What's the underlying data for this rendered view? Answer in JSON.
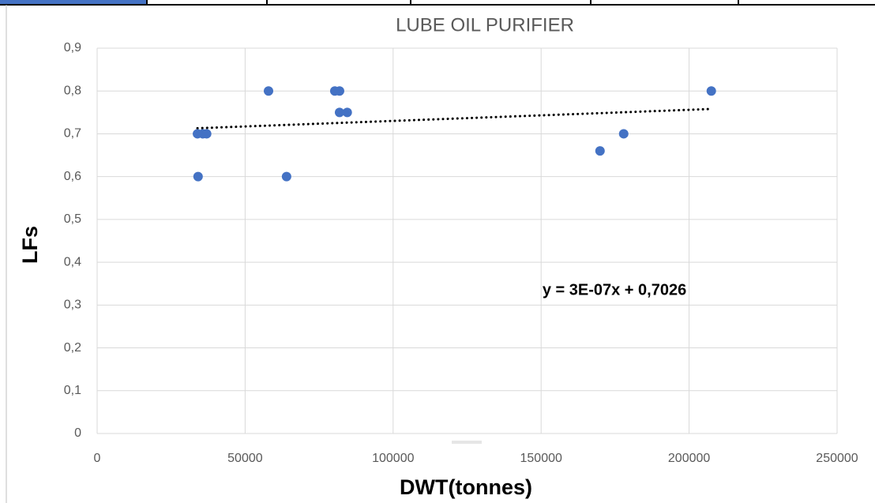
{
  "chart_data": {
    "type": "scatter",
    "title": "LUBE OIL PURIFIER",
    "xlabel": "DWT(tonnes)",
    "ylabel": "LFs",
    "x": [
      33900,
      34100,
      35700,
      37000,
      57900,
      64000,
      80300,
      81900,
      81900,
      84500,
      169900,
      177900,
      207500
    ],
    "values": [
      0.7,
      0.6,
      0.7,
      0.7,
      0.8,
      0.6,
      0.8,
      0.8,
      0.75,
      0.75,
      0.66,
      0.7,
      0.8
    ],
    "color": "#4472c4",
    "trendline": {
      "x": [
        33900,
        207500
      ],
      "values": [
        0.713,
        0.758
      ],
      "color": "#000000"
    },
    "annotation": "y = 3E-07x + 0,7026",
    "xlim": [
      0,
      250000
    ],
    "xticks": [
      0,
      50000,
      100000,
      150000,
      200000,
      250000
    ],
    "ylim": [
      0,
      0.9
    ],
    "yticks": [
      0,
      {
        "value": 0.1,
        "label": "0,1"
      },
      {
        "value": 0.2,
        "label": "0,2"
      },
      {
        "value": 0.3,
        "label": "0,3"
      },
      {
        "value": 0.4,
        "label": "0,4"
      },
      {
        "value": 0.5,
        "label": "0,5"
      },
      {
        "value": 0.6,
        "label": "0,6"
      },
      {
        "value": 0.7,
        "label": "0,7"
      },
      {
        "value": 0.8,
        "label": "0,8"
      },
      {
        "value": 0.9,
        "label": "0,9"
      }
    ],
    "grid": true
  }
}
